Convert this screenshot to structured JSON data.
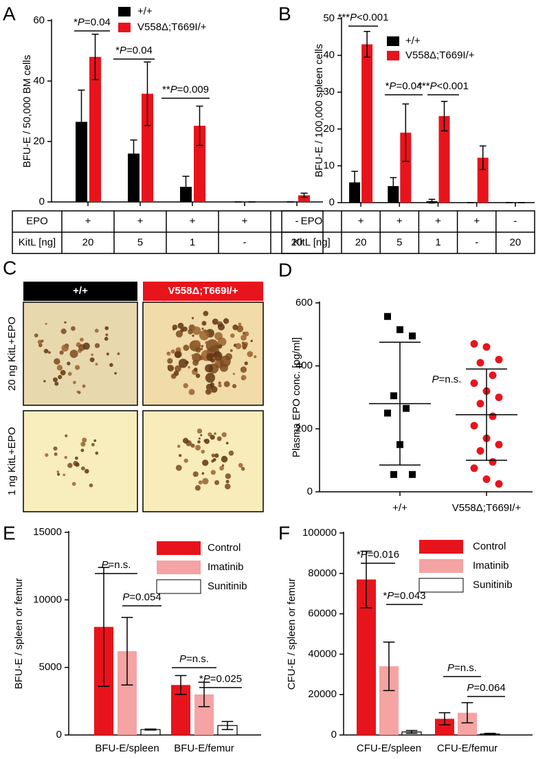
{
  "chart_data": [
    {
      "panel": "A",
      "type": "bar",
      "y_label": "BFU-E / 50,000 BM cells",
      "categories": [
        null,
        null,
        null,
        null,
        null
      ],
      "series": [
        {
          "name": "+/+",
          "color": "#000000",
          "values": [
            26.5,
            16,
            5,
            0,
            0
          ],
          "errors": [
            10.5,
            4.5,
            3.5,
            0,
            0
          ]
        },
        {
          "name": "V558Δ;T669I/+",
          "color": "#e8141c",
          "values": [
            48,
            35.8,
            25.2,
            0,
            2.2
          ],
          "errors": [
            7.5,
            10.5,
            6.5,
            0,
            0.7
          ]
        }
      ],
      "ylim": [
        0,
        60
      ],
      "yticks": [
        0,
        20,
        40,
        60
      ],
      "annotations": [
        "*P=0.04",
        "*P=0.04",
        "**P=0.009"
      ],
      "table": {
        "rows": [
          [
            "EPO",
            "+",
            "+",
            "+",
            "+",
            "-"
          ],
          [
            "KitL [ng]",
            "20",
            "5",
            "1",
            "-",
            "20"
          ]
        ]
      }
    },
    {
      "panel": "B",
      "type": "bar",
      "y_label": "BFU-E / 100,000 spleen cells",
      "categories": [
        null,
        null,
        null,
        null,
        null
      ],
      "series": [
        {
          "name": "+/+",
          "color": "#000000",
          "values": [
            5.5,
            4.5,
            0.4,
            0,
            0
          ],
          "errors": [
            3,
            2.3,
            0.5,
            0,
            0
          ]
        },
        {
          "name": "V558Δ;T669I/+",
          "color": "#e8141c",
          "values": [
            43,
            19,
            23.5,
            12.2,
            0
          ],
          "errors": [
            3.5,
            7.8,
            4,
            3.2,
            0
          ]
        }
      ],
      "ylim": [
        0,
        50
      ],
      "yticks": [
        0,
        10,
        20,
        30,
        40,
        50
      ],
      "annotations": [
        "***P<0.001",
        "*P=0.04",
        "***P<0.001"
      ],
      "table": {
        "rows": [
          [
            "EPO",
            "+",
            "+",
            "+",
            "+",
            "-"
          ],
          [
            "KitL [ng]",
            "20",
            "5",
            "1",
            "-",
            "20"
          ]
        ]
      }
    },
    {
      "panel": "D",
      "type": "scatter",
      "y_label": "Plasma EPO conc. [pg/ml]",
      "categories": [
        "+/+",
        "V558Δ;T669I/+"
      ],
      "series": [
        {
          "color": "#000000",
          "marker": "square",
          "values": [
            557,
            515,
            495,
            305,
            265,
            250,
            150,
            55,
            55
          ],
          "mean": 280,
          "sd": 195
        },
        {
          "color": "#e8141c",
          "marker": "circle",
          "values": [
            470,
            460,
            420,
            410,
            370,
            345,
            320,
            300,
            280,
            240,
            210,
            170,
            150,
            130,
            95,
            75,
            40,
            25
          ],
          "mean": 245,
          "sd": 145
        }
      ],
      "ylim": [
        0,
        600
      ],
      "yticks": [
        0,
        200,
        400,
        600
      ],
      "annotations": [
        "P=n.s."
      ]
    },
    {
      "panel": "E",
      "type": "bar",
      "y_label": "BFU-E / spleen or femur",
      "categories": [
        "BFU-E/spleen",
        "BFU-E/femur"
      ],
      "series": [
        {
          "name": "Control",
          "color": "#e8141c",
          "values": [
            8000,
            3700
          ],
          "errors": [
            4400,
            700
          ]
        },
        {
          "name": "Imatinib",
          "color": "#f5a3a3",
          "values": [
            6200,
            3000
          ],
          "errors": [
            2500,
            900
          ]
        },
        {
          "name": "Sunitinib",
          "color": "#ffffff",
          "values": [
            400,
            700
          ],
          "errors": [
            40,
            300
          ]
        }
      ],
      "ylim": [
        0,
        15000
      ],
      "yticks": [
        0,
        5000,
        10000,
        15000
      ],
      "annotations": [
        "P=n.s.",
        "P=0.054",
        "P=n.s.",
        "*P=0.025"
      ]
    },
    {
      "panel": "F",
      "type": "bar",
      "y_label": "CFU-E / spleen or femur",
      "categories": [
        "CFU-E/spleen",
        "CFU-E/femur"
      ],
      "series": [
        {
          "name": "Control",
          "color": "#e8141c",
          "values": [
            77000,
            8000
          ],
          "errors": [
            14000,
            3000
          ]
        },
        {
          "name": "Imatinib",
          "color": "#f5a3a3",
          "values": [
            34000,
            11000
          ],
          "errors": [
            12000,
            5000
          ]
        },
        {
          "name": "Sunitinib",
          "color": "#ffffff",
          "values": [
            1500,
            500
          ],
          "errors": [
            700,
            300
          ]
        }
      ],
      "ylim": [
        0,
        100000
      ],
      "yticks": [
        0,
        20000,
        40000,
        60000,
        80000,
        100000
      ],
      "annotations": [
        "*P=0.016",
        "*P=0.043",
        "P=n.s.",
        "P=0.064"
      ]
    }
  ],
  "panel_c": {
    "panel": "C",
    "columns": [
      "+/+",
      "V558Δ;T669I/+"
    ],
    "rows": [
      "20 ng KitL+EPO",
      "1 ng KitL+EPO"
    ]
  }
}
